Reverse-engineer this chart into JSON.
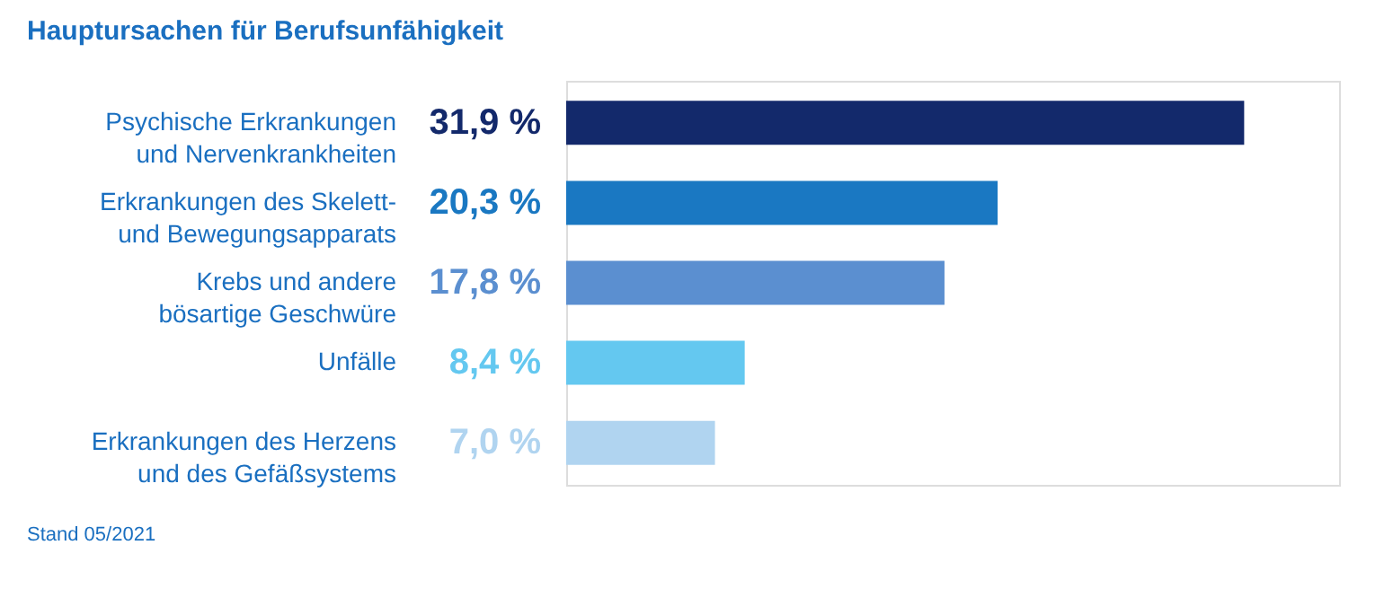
{
  "chart_data": {
    "type": "bar",
    "orientation": "horizontal",
    "title": "Hauptursachen für Berufsunfähigkeit",
    "categories": [
      "Psychische Erkrankungen\nund Nervenkrankheiten",
      "Erkrankungen des Skelett-\nund Bewegungsapparats",
      "Krebs und andere\nbösartige Geschwüre",
      "Unfälle",
      "Erkrankungen des Herzens\nund des Gefäßsystems"
    ],
    "values": [
      31.9,
      20.3,
      17.8,
      8.4,
      7.0
    ],
    "value_labels": [
      "31,9 %",
      "20,3 %",
      "17,8 %",
      "8,4 %",
      "7,0 %"
    ],
    "colors": [
      "#13296b",
      "#1a78c2",
      "#5b8fd0",
      "#64c8f0",
      "#b0d4f0"
    ],
    "annotations": [
      "Stand 05/2021"
    ]
  }
}
